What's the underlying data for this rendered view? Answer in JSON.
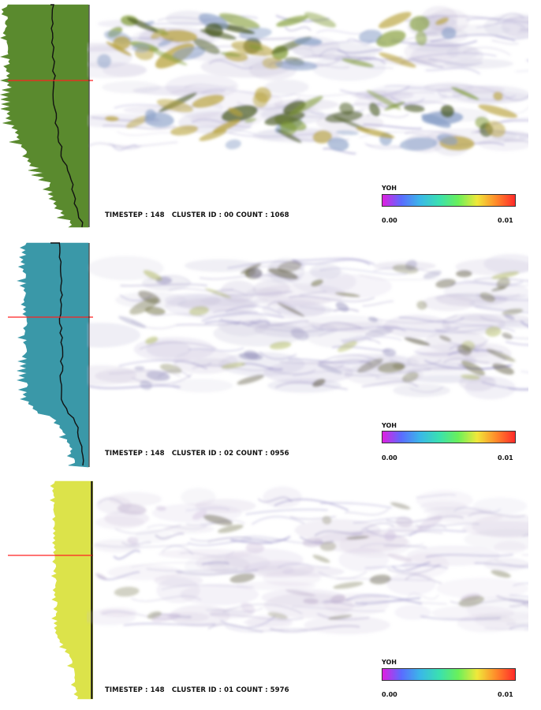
{
  "panels": [
    {
      "caption": "TIMESTEP : 148   CLUSTER ID : 00 COUNT : 1068",
      "profile_color": "#5a8a2e",
      "surface_colors": [
        "#b8a23a",
        "#7f9a32",
        "#4a5a22",
        "#8aa0c8"
      ],
      "density": 0.85
    },
    {
      "caption": "TIMESTEP : 148   CLUSTER ID : 02 COUNT : 0956",
      "profile_color": "#3a98a8",
      "surface_colors": [
        "#6a6a3a",
        "#4e4a30",
        "#8e8ab8",
        "#a6b04a"
      ],
      "density": 0.55
    },
    {
      "caption": "TIMESTEP : 148   CLUSTER ID : 01 COUNT : 5976",
      "profile_color": "#dce34a",
      "surface_colors": [
        "#8a8a6a",
        "#b8a8c8",
        "#5e5a44",
        "#c8b8d8"
      ],
      "density": 0.3
    }
  ],
  "colorbar": {
    "title": "YOH",
    "min_label": "0.00",
    "max_label": "0.01",
    "gradient": [
      "#e01ee0",
      "#5a6cff",
      "#3ab8e8",
      "#3ae0b0",
      "#6af05a",
      "#f0e83a",
      "#ff8a2a",
      "#ff2a2a"
    ]
  },
  "marker_color": "#ff2020"
}
